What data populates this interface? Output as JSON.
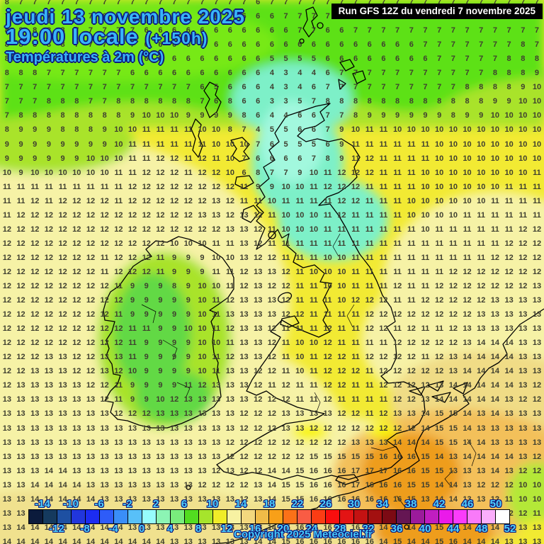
{
  "header": {
    "date_line": "jeudi 13 novembre 2025",
    "time_line": "19:00 locale",
    "time_offset": "(+150h)",
    "subtitle": "Températures à 2m (°C)",
    "run_label": "Run GFS 12Z du vendredi 7 novembre 2025"
  },
  "footer": {
    "copyright": "Copyright 2025 Meteociel.fr"
  },
  "colors": {
    "title_blue": "#38b4f8",
    "outline_navy": "#0e1a7e",
    "scale_label_cyan": "#4fd2fc",
    "number_gray": "#3f3f30",
    "sea_yellow": "#f2ea33",
    "sea_pale_yellow": "#f6f2a6",
    "land_green": "#5de114",
    "land_yellow_green": "#a9e32b",
    "cold_mint": "#82f0ca",
    "warm_orange": "#ee9d1e"
  },
  "scale": {
    "unit": "°C",
    "min": -16,
    "max": 52,
    "step": 2,
    "top_labels": [
      "-14",
      "-10",
      "-6",
      "-2",
      "2",
      "6",
      "10",
      "14",
      "18",
      "22",
      "26",
      "30",
      "34",
      "38",
      "42",
      "46",
      "50"
    ],
    "bottom_labels": [
      "-12",
      "-8",
      "-4",
      "0",
      "4",
      "8",
      "12",
      "16",
      "20",
      "24",
      "28",
      "32",
      "36",
      "40",
      "44",
      "48",
      "52"
    ],
    "cell_colors": [
      "#0b1b3c",
      "#153a5e",
      "#1e50a2",
      "#2136dc",
      "#1c2cf2",
      "#2e5cf8",
      "#3a8ef8",
      "#58c0f8",
      "#97fcfc",
      "#8cf4b4",
      "#79ec7c",
      "#52dc20",
      "#a6e42c",
      "#f0ec28",
      "#f7f2a2",
      "#f2d87e",
      "#f0bc48",
      "#f8a018",
      "#fb7118",
      "#f95c44",
      "#fb3c14",
      "#f90e0e",
      "#e31414",
      "#c41212",
      "#a31010",
      "#7c0a14",
      "#651653",
      "#9b1b9b",
      "#c01ec0",
      "#ea1aea",
      "#fb3cfb",
      "#f97af9",
      "#fbaefb",
      "#ffffff"
    ]
  },
  "grid": {
    "rows": [
      "8 7 7 7 7 7 7 7 7 7 7 7 7 7 7 7 7 7 6 7 7 7 7 7 7 7 7 7 7 7 7 7 7 7 7 7 7 7 7",
      "7 7 7 7 7 7 7 6 6 6 6 6 6 6 6 6 6 6 6 6 7 7 7 7 7 7 7 7 7 7 7 7 7 7 7 7 7 7 7",
      "8 8 8 8 8 7 7 7 7 7 6 6 6 6 6 6 6 6 6 6 6 7 7 6 6 7 7 7 7 7 7 7 7 7 7 7 7 7 7",
      "8 8 8 8 8 7 7 7 7 7 6 6 6 6 6 6 6 6 6 6 6 6 6 6 6 6 6 6 6 6 7 7 7 7 7 7 7 8 7",
      "8 8 8 8 8 8 7 7 7 6 6 6 6 6 6 6 6 6 6 5 5 5 5 6 6 6 6 6 6 6 6 7 7 7 7 7 8 8 8",
      "8 8 8 7 7 7 7 7 7 6 6 6 6 6 6 6 6 6 6 4 3 4 4 6 7 7 7 7 7 7 7 7 7 7 7 8 8 8 9",
      "7 7 7 7 7 7 7 7 7 7 7 7 7 7 6 5 6 6 6 4 3 4 6 7 7 7 7 7 7 7 7 7 7 8 8 8 8 9 10",
      "7 7 7 8 8 8 7 7 8 8 8 8 8 8 7 6 8 6 6 3 3 5 7 8 8 8 8 8 8 8 8 8 8 8 8 9 9 10 10",
      "7 8 8 8 8 8 8 8 8 9 10 10 10 9 9 9 9 8 6 4 4 6 6 7 7 8 9 9 9 9 9 9 8 9 9 10 10 10 10",
      "8 9 9 9 8 8 8 9 10 10 11 11 11 11 10 10 8 7 4 5 5 6 6 7 9 10 11 11 10 10 10 10 10 10 10 10 10 10 10",
      "9 9 9 9 9 9 9 9 10 11 11 11 11 11 11 10 10 10 7 6 5 5 5 6 9 11 11 11 11 11 11 10 10 10 10 10 10 10 10",
      "9 9 9 9 9 9 10 10 10 11 11 12 12 11 12 11 10 7 6 6 6 6 7 8 9 11 12 11 11 11 11 10 10 10 10 10 10 10 10",
      "10 9 10 10 10 10 10 10 11 11 12 12 12 11 12 12 10 6 8 7 7 9 10 11 12 12 12 11 11 11 10 10 10 10 10 10 10 10 11",
      "11 11 11 11 11 11 11 11 11 12 12 12 12 12 12 12 12 11 9 9 10 10 11 12 12 12 11 11 11 11 10 10 10 10 10 10 11 11 11",
      "11 11 12 11 12 12 12 12 11 12 12 12 12 12 12 13 12 11 11 10 11 11 11 11 12 12 11 11 11 10 10 10 10 10 10 11 11 11 11",
      "11 12 12 12 12 12 12 12 12 12 12 12 12 12 13 13 12 13 12 11 10 10 10 11 12 11 11 11 11 10 10 10 10 11 11 11 11 11 11",
      "12 12 12 12 12 12 12 12 12 12 12 12 12 12 12 12 13 13 12 11 10 10 10 11 11 11 11 11 11 11 10 11 11 11 11 11 11 12 12",
      "12 12 12 12 12 12 12 12 12 12 12 12 10 10 10 11 11 13 12 11 11 11 11 11 11 11 11 11 11 11 11 11 11 11 11 11 12 12 12",
      "12 12 12 12 12 12 12 11 12 12 12 11 9 9 9 10 10 13 12 12 11 11 11 10 10 11 11 11 11 11 11 11 11 11 11 12 12 12 12",
      "12 12 12 12 12 12 12 11 12 12 12 11 9 9 9 11 11 12 13 13 12 11 10 10 10 11 11 11 11 11 11 11 12 12 12 12 12 12 12",
      "12 12 12 12 12 12 12 12 11 9 9 9 8 9 10 10 11 12 13 12 12 11 11 10 10 11 11 11 12 11 11 12 12 12 12 12 12 12 13",
      "12 12 12 12 12 12 12 12 12 9 9 9 9 9 10 11 12 13 13 13 12 11 11 11 10 12 12 12 11 11 12 12 12 12 12 13 13 13 13",
      "12 12 12 12 12 12 12 12 11 9 9 9 9 9 10 11 13 13 13 13 12 12 11 11 11 11 12 12 12 12 12 12 12 12 13 13 13 13 13",
      "12 12 12 12 12 12 12 12 12 11 11 9 9 10 10 11 12 13 13 12 11 11 11 12 11 11 12 12 11 12 11 11 12 13 13 13 13 13 13",
      "12 12 12 12 12 12 12 12 12 11 9 9 9 9 10 10 11 13 13 12 11 10 10 12 11 11 11 11 12 12 12 12 12 13 14 14 14 13 13",
      "12 12 12 13 13 12 12 13 13 11 9 9 9 9 10 11 12 13 13 12 11 10 11 12 12 11 12 12 12 12 11 12 13 14 14 14 14 13 13",
      "12 12 13 13 13 12 12 13 12 10 9 9 9 9 10 11 13 13 12 12 11 10 11 12 12 12 11 12 12 12 12 12 13 14 14 14 14 13 13",
      "12 13 13 13 13 13 12 12 11 9 9 9 9 11 12 13 13 13 12 11 12 11 11 12 12 11 11 12 12 12 12 13 14 14 14 14 14 13 12",
      "13 13 13 13 13 13 13 12 11 9 9 10 12 13 13 13 13 13 12 12 12 11 11 12 11 11 11 11 12 12 13 14 14 14 14 14 13 12 12",
      "13 13 13 13 13 13 13 13 12 12 12 13 13 13 13 13 13 12 12 12 13 13 13 13 12 12 11 12 13 13 14 15 15 14 13 14 13 13 13",
      "13 13 13 13 13 13 13 13 13 13 13 13 13 13 13 13 13 12 12 12 13 13 12 12 12 12 12 12 12 12 14 15 15 14 13 13 13 13 13",
      "13 13 13 13 13 13 13 13 13 13 13 13 13 13 13 13 12 12 12 12 12 12 12 12 12 13 13 13 14 14 14 15 15 14 14 13 13 13 13",
      "13 13 13 13 13 13 13 13 13 13 13 13 13 13 13 13 12 12 12 12 12 12 15 15 15 15 15 16 16 16 15 14 13 14 14 14 14 13 12",
      "13 13 13 14 14 13 13 13 13 13 13 13 13 13 13 12 13 12 12 14 14 15 16 16 16 17 17 17 16 16 15 15 13 13 13 14 13 12 12",
      "13 13 14 14 14 14 13 13 13 13 13 13 13 13 12 12 12 12 13 14 15 15 16 16 16 17 16 16 16 15 15 14 14 13 12 12 12 10 10",
      "13 13 14 14 14 14 14 13 13 13 13 13 13 13 13 13 13 12 13 14 15 15 16 16 16 16 16 16 16 15 13 14 14 13 13 12 11 10 10",
      "13 13 14 14 14 14 14 14 14 13 13 13 13 13 13 13 13 12 13 14 15 15 16 16 16 16 16 16 16 15 14 14 13 13 12 12 12 12 11",
      "13 14 14 14 14 14 14 14 14 13 13 13 13 13 13 13 13 13 13 14 15 16 16 16 16 16 16 14 15 14 14 15 16 14 14 14 13 13 13",
      "14 14 14 14 14 14 14 14 14 14 14 14 13 13 13 13 13 13 14 14 15 16 16 16 16 16 16 14 15 14 14 15 16 14 14 14 13 13 13"
    ]
  }
}
